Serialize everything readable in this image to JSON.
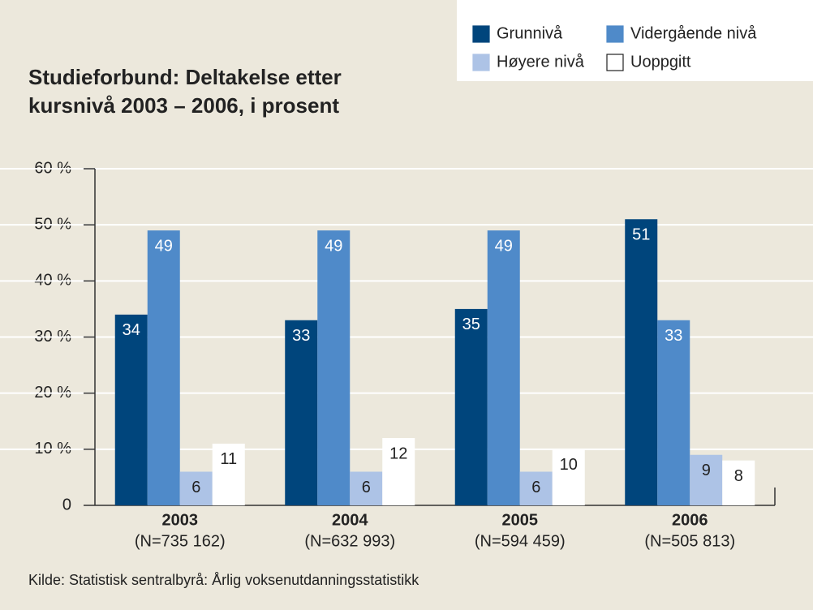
{
  "chart_data": {
    "type": "bar",
    "title": "Studieforbund: Deltakelse etter kursnivå 2003 – 2006, i prosent",
    "categories": [
      "2003",
      "2004",
      "2005",
      "2006"
    ],
    "category_notes": [
      "(N=735 162)",
      "(N=632 993)",
      "(N=594 459)",
      "(N=505 813)"
    ],
    "series": [
      {
        "name": "Grunnivå",
        "color": "#00457c",
        "values": [
          34,
          33,
          35,
          51
        ]
      },
      {
        "name": "Vidergående nivå",
        "color": "#4f8ac9",
        "values": [
          49,
          49,
          49,
          33
        ]
      },
      {
        "name": "Høyere nivå",
        "color": "#adc3e6",
        "values": [
          6,
          6,
          6,
          9
        ]
      },
      {
        "name": "Uoppgitt",
        "color": "#ffffff",
        "values": [
          11,
          12,
          10,
          8
        ]
      }
    ],
    "ylim": [
      0,
      60
    ],
    "yticks": [
      0,
      {
        "value": 10,
        "label": "10 %"
      },
      {
        "value": 20,
        "label": "20 %"
      },
      {
        "value": 30,
        "label": "30 %"
      },
      {
        "value": 40,
        "label": "40 %"
      },
      {
        "value": 50,
        "label": "50 %"
      },
      {
        "value": 60,
        "label": "60 %"
      }
    ],
    "grid": true,
    "legend": "top-right",
    "source": "Kilde: Statistisk sentralbyrå:  Årlig voksenutdanningsstatistikk"
  }
}
